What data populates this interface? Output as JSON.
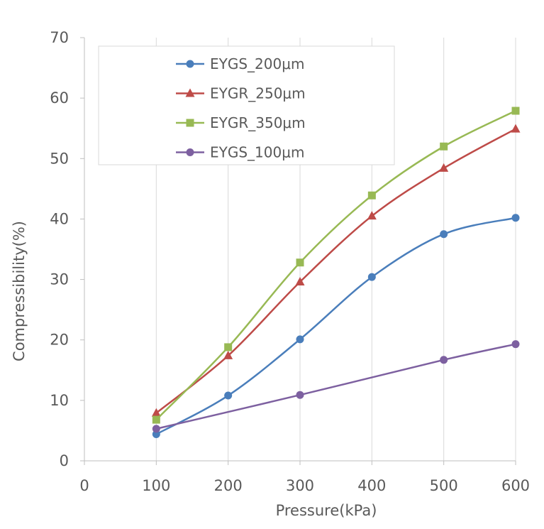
{
  "chart_data": {
    "type": "line",
    "title": "",
    "xlabel": "Pressure(kPa)",
    "ylabel": "Compressibility(%)",
    "xlim": [
      0,
      600
    ],
    "ylim": [
      0,
      70
    ],
    "xticks": [
      "0",
      "100",
      "200",
      "300",
      "400",
      "500",
      "600"
    ],
    "yticks": [
      "0",
      "10",
      "20",
      "30",
      "40",
      "50",
      "60",
      "70"
    ],
    "grid": "vertical",
    "legend_position": "top-left",
    "series": [
      {
        "name": "EYGS_200μm",
        "color": "#4A7EBB",
        "marker": "circle",
        "x": [
          100,
          200,
          300,
          400,
          500,
          600
        ],
        "y": [
          4.4,
          10.8,
          20.1,
          30.4,
          37.5,
          40.2
        ]
      },
      {
        "name": "EYGR_250μm",
        "color": "#BE4B48",
        "marker": "triangle",
        "x": [
          100,
          200,
          300,
          400,
          500,
          600
        ],
        "y": [
          7.9,
          17.4,
          29.6,
          40.5,
          48.4,
          54.9
        ]
      },
      {
        "name": "EYGR_350μm",
        "color": "#98B954",
        "marker": "square",
        "x": [
          100,
          200,
          300,
          400,
          500,
          600
        ],
        "y": [
          6.8,
          18.8,
          32.8,
          43.9,
          52.0,
          57.9
        ]
      },
      {
        "name": "EYGS_100μm",
        "color": "#7D60A0",
        "marker": "circle",
        "x": [
          100,
          300,
          500,
          600
        ],
        "y": [
          5.3,
          10.9,
          16.7,
          19.3
        ]
      }
    ]
  }
}
